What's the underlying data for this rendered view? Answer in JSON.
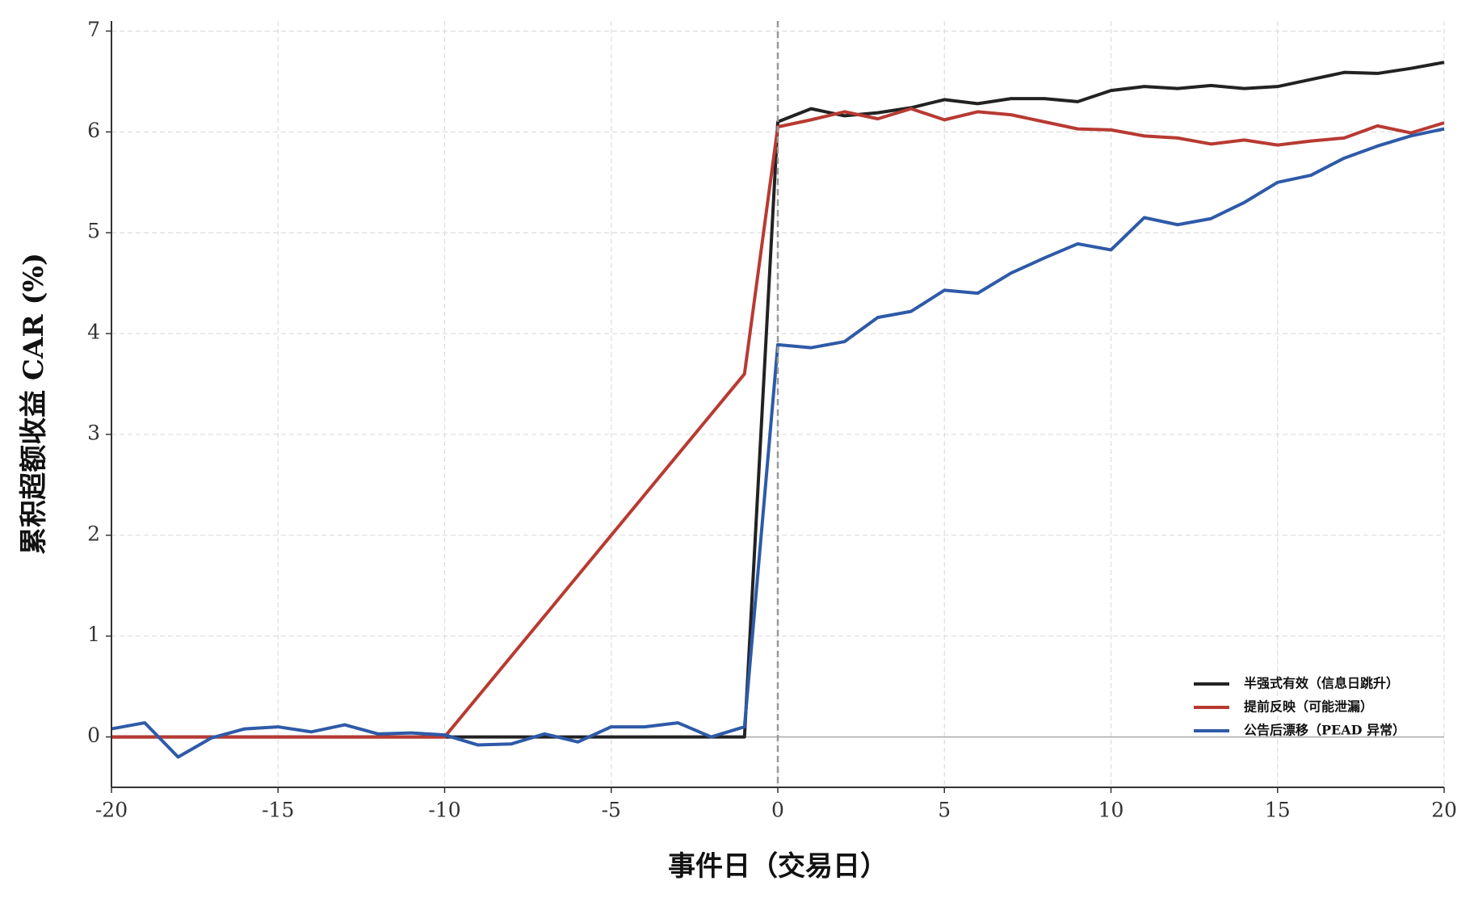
{
  "chart_data": {
    "type": "line",
    "xlabel": "事件日（交易日）",
    "ylabel": "累积超额收益 CAR (%)",
    "x": [
      -20,
      -19,
      -18,
      -17,
      -16,
      -15,
      -14,
      -13,
      -12,
      -11,
      -10,
      -9,
      -8,
      -7,
      -6,
      -5,
      -4,
      -3,
      -2,
      -1,
      0,
      1,
      2,
      3,
      4,
      5,
      6,
      7,
      8,
      9,
      10,
      11,
      12,
      13,
      14,
      15,
      16,
      17,
      18,
      19,
      20
    ],
    "series": [
      {
        "name": "半强式有效（信息日跳升）",
        "color": "#222222",
        "values": [
          0,
          0,
          0,
          0,
          0,
          0,
          0,
          0,
          0,
          0,
          0,
          0,
          0,
          0,
          0,
          0,
          0,
          0,
          0,
          0,
          6.1,
          6.23,
          6.16,
          6.19,
          6.24,
          6.32,
          6.28,
          6.33,
          6.33,
          6.3,
          6.41,
          6.45,
          6.43,
          6.46,
          6.43,
          6.45,
          6.52,
          6.59,
          6.58,
          6.63,
          6.69
        ]
      },
      {
        "name": "提前反映（可能泄漏）",
        "color": "#b83a32",
        "values": [
          0,
          0,
          0,
          0,
          0,
          0,
          0,
          0,
          0,
          0,
          0,
          0.4,
          0.8,
          1.2,
          1.6,
          2.0,
          2.4,
          2.8,
          3.2,
          3.6,
          6.05,
          6.12,
          6.2,
          6.13,
          6.23,
          6.12,
          6.2,
          6.17,
          6.1,
          6.03,
          6.02,
          5.96,
          5.94,
          5.88,
          5.92,
          5.87,
          5.91,
          5.94,
          6.06,
          5.99,
          6.09
        ]
      },
      {
        "name": "公告后漂移（PEAD 异常）",
        "color": "#2e5aa8",
        "values": [
          0.08,
          0.14,
          -0.2,
          -0.01,
          0.08,
          0.1,
          0.05,
          0.12,
          0.03,
          0.04,
          0.02,
          -0.08,
          -0.07,
          0.03,
          -0.05,
          0.1,
          0.1,
          0.14,
          0.0,
          0.1,
          3.89,
          3.86,
          3.92,
          4.16,
          4.22,
          4.43,
          4.4,
          4.6,
          4.75,
          4.89,
          4.83,
          5.15,
          5.08,
          5.14,
          5.3,
          5.5,
          5.57,
          5.74,
          5.86,
          5.96,
          6.03
        ]
      }
    ],
    "xlim": [
      -20,
      20
    ],
    "ylim": [
      -0.5,
      7.1
    ],
    "xticks": [
      -20,
      -15,
      -10,
      -5,
      0,
      5,
      10,
      15,
      20
    ],
    "yticks": [
      0,
      1,
      2,
      3,
      4,
      5,
      6,
      7
    ],
    "vline": 0,
    "hline": 0,
    "grid": true,
    "legend": "lower right"
  }
}
